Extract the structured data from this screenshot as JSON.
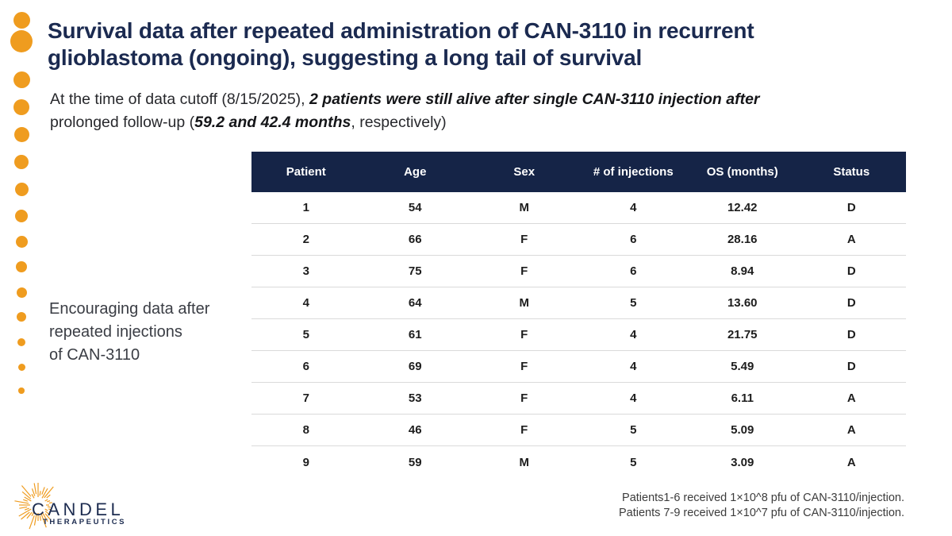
{
  "title": {
    "line1": "Survival data after repeated administration of CAN-3110 in recurrent",
    "line2": "glioblastoma (ongoing), suggesting a long tail of survival"
  },
  "subtitle": {
    "line1_normal": "At the time of data cutoff (8/15/2025), ",
    "line1_bold": "2 patients were still alive after single CAN-3110 injection after",
    "line2_normal_a": "prolonged follow-up (",
    "line2_bold": "59.2 and 42.4 months",
    "line2_normal_b": ", respectively)"
  },
  "side_note": {
    "line1": "Encouraging data after",
    "line2": "repeated injections",
    "line3": "of CAN-3110"
  },
  "chart_data": {
    "type": "table",
    "columns": [
      "Patient",
      "Age",
      "Sex",
      "# of injections",
      "OS (months)",
      "Status"
    ],
    "rows": [
      [
        "1",
        "54",
        "M",
        "4",
        "12.42",
        "D"
      ],
      [
        "2",
        "66",
        "F",
        "6",
        "28.16",
        "A"
      ],
      [
        "3",
        "75",
        "F",
        "6",
        "8.94",
        "D"
      ],
      [
        "4",
        "64",
        "M",
        "5",
        "13.60",
        "D"
      ],
      [
        "5",
        "61",
        "F",
        "4",
        "21.75",
        "D"
      ],
      [
        "6",
        "69",
        "F",
        "4",
        "5.49",
        "D"
      ],
      [
        "7",
        "53",
        "F",
        "4",
        "6.11",
        "A"
      ],
      [
        "8",
        "46",
        "F",
        "5",
        "5.09",
        "A"
      ],
      [
        "9",
        "59",
        "M",
        "5",
        "3.09",
        "A"
      ]
    ]
  },
  "footnote": {
    "line1": "Patients1-6 received 1×10^8 pfu of CAN-3110/injection.",
    "line2": "Patients 7-9 received 1×10^7 pfu of CAN-3110/injection."
  },
  "logo": {
    "brand": "CANDEL",
    "tagline": "THERAPEUTICS"
  },
  "colors": {
    "navy": "#1b2a50",
    "table_header_navy": "#152447",
    "orange": "#ef9c1f"
  }
}
